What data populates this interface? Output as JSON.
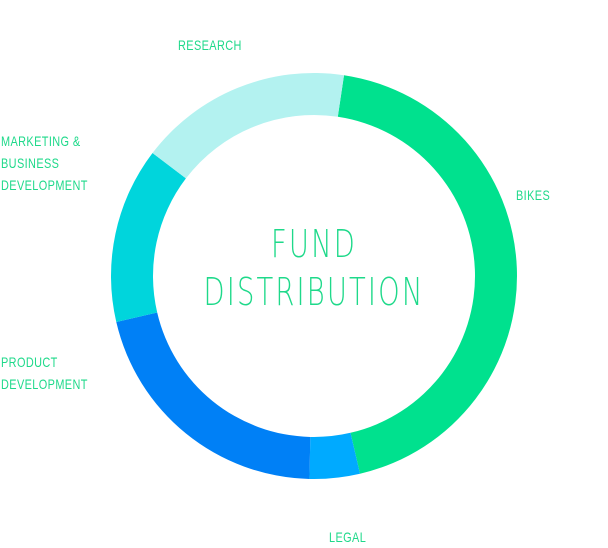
{
  "chart_data": {
    "type": "pie",
    "style": "donut",
    "title_lines": [
      "FUND",
      "DISTRIBUTION"
    ],
    "slices": [
      {
        "label_lines": [
          "BIKES"
        ],
        "value": 44,
        "color": "#00e18e"
      },
      {
        "label_lines": [
          "LEGAL"
        ],
        "value": 4,
        "color": "#00aaff"
      },
      {
        "label_lines": [
          "PRODUCT",
          "DEVELOPMENT"
        ],
        "value": 21,
        "color": "#0080f6"
      },
      {
        "label_lines": [
          "MARKETING &",
          "BUSINESS",
          "DEVELOPMENT"
        ],
        "value": 14,
        "color": "#00d5dc"
      },
      {
        "label_lines": [
          "RESEARCH"
        ],
        "value": 17,
        "color": "#b3f2f0"
      }
    ],
    "legend": "labels placed beside their slices"
  }
}
